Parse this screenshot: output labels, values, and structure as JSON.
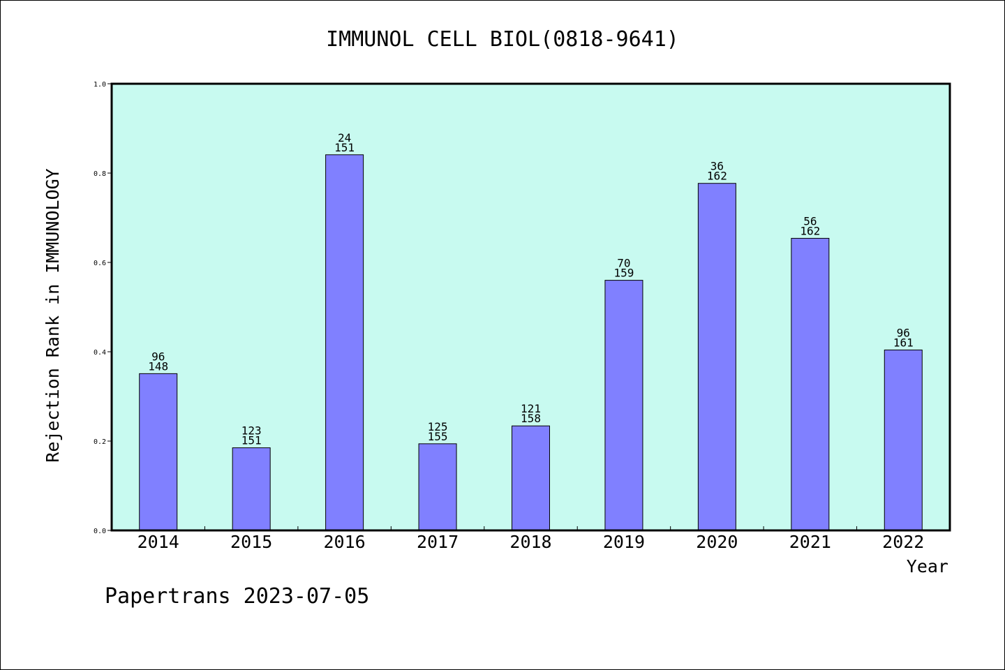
{
  "chart_data": {
    "type": "bar",
    "title": "IMMUNOL CELL BIOL(0818-9641)",
    "xlabel": "Year",
    "ylabel": "Rejection Rank in IMMUNOLOGY",
    "ylim": [
      0,
      1.0
    ],
    "yticks": [
      "0.0",
      "0.2",
      "0.4",
      "0.6",
      "0.8",
      "1.0"
    ],
    "categories": [
      "2014",
      "2015",
      "2016",
      "2017",
      "2018",
      "2019",
      "2020",
      "2021",
      "2022"
    ],
    "values": [
      0.351,
      0.185,
      0.841,
      0.194,
      0.234,
      0.56,
      0.777,
      0.654,
      0.404
    ],
    "labels_top": [
      "96",
      "123",
      "24",
      "125",
      "121",
      "70",
      "36",
      "56",
      "96"
    ],
    "labels_bottom": [
      "148",
      "151",
      "151",
      "155",
      "158",
      "159",
      "162",
      "162",
      "161"
    ],
    "colors": {
      "plot_bg": "#c8faf0",
      "bar": "#8080ff"
    }
  },
  "footer": "Papertrans 2023-07-05"
}
